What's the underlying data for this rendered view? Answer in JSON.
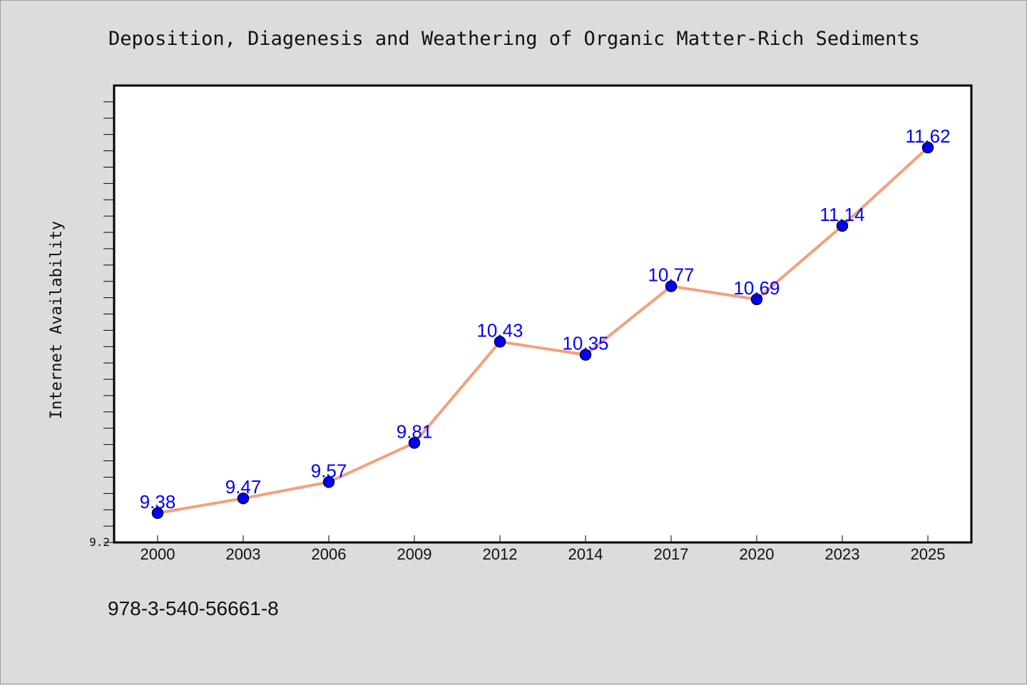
{
  "chart_data": {
    "type": "line",
    "title": "Deposition, Diagenesis and Weathering of Organic Matter-Rich Sediments",
    "xlabel": "",
    "ylabel": "Internet Availability",
    "categories": [
      "2000",
      "2003",
      "2006",
      "2009",
      "2012",
      "2014",
      "2017",
      "2020",
      "2023",
      "2025"
    ],
    "values": [
      9.38,
      9.47,
      9.57,
      9.81,
      10.43,
      10.35,
      10.77,
      10.69,
      11.14,
      11.62
    ],
    "data_labels": [
      "9.38",
      "9.47",
      "9.57",
      "9.81",
      "10.43",
      "10.35",
      "10.77",
      "10.69",
      "11.14",
      "11.62"
    ],
    "ylim": [
      9.2,
      12.0
    ],
    "y_tick_labels": [
      "9.2"
    ],
    "grid": false,
    "legend": "none",
    "colors": {
      "line": "#f4a07a",
      "marker": "#0000ff",
      "marker_edge": "#000033",
      "label": "#0000ff",
      "plot_background": "#ffffff",
      "page_background": "#dcdcdc"
    }
  },
  "footer": {
    "isbn": "978-3-540-56661-8"
  }
}
